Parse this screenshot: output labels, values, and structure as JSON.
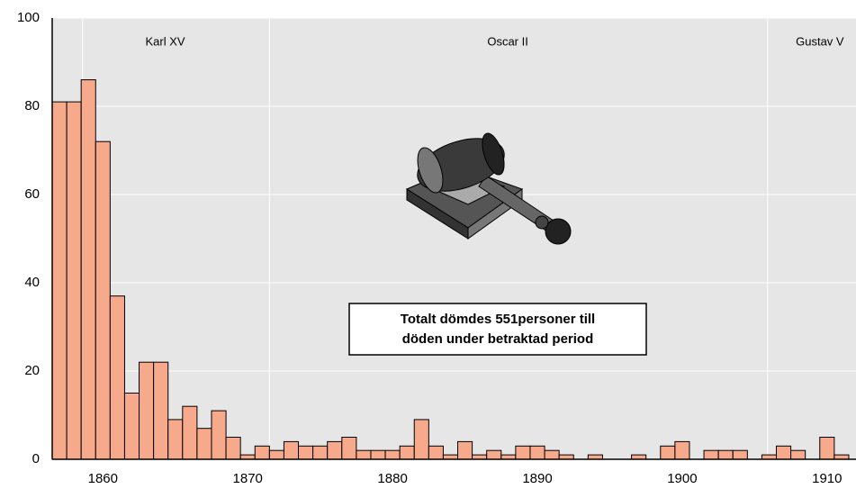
{
  "chart_data": {
    "type": "histogram",
    "bins": [
      1856.5,
      1857.5,
      1858.5,
      1859.5,
      1860.5,
      1861.5,
      1862.5,
      1863.5,
      1864.5,
      1865.5,
      1866.5,
      1867.5,
      1868.5,
      1869.5,
      1870.5,
      1871.5,
      1872.5,
      1873.5,
      1874.5,
      1875.5,
      1876.5,
      1877.5,
      1878.5,
      1879.5,
      1880.5,
      1881.5,
      1882.5,
      1883.5,
      1884.5,
      1885.5,
      1886.5,
      1887.5,
      1888.5,
      1889.5,
      1890.5,
      1891.5,
      1892.5,
      1893.5,
      1894.5,
      1895.5,
      1896.5,
      1897.5,
      1898.5,
      1899.5,
      1900.5,
      1901.5,
      1902.5,
      1903.5,
      1904.5,
      1905.5,
      1906.5,
      1907.5,
      1908.5,
      1909.5,
      1910.5,
      1911.5
    ],
    "values": [
      81,
      81,
      86,
      72,
      37,
      15,
      22,
      22,
      9,
      12,
      7,
      11,
      5,
      1,
      3,
      2,
      4,
      3,
      3,
      4,
      5,
      2,
      2,
      2,
      3,
      9,
      3,
      1,
      4,
      1,
      2,
      1,
      3,
      3,
      2,
      1,
      0,
      1,
      0,
      0,
      1,
      0,
      3,
      4,
      0,
      2,
      2,
      2,
      0,
      1,
      3,
      2,
      0,
      5,
      1
    ],
    "color": "#f7a98b",
    "xlim": [
      1856.5,
      1912
    ],
    "xticks": [
      1860,
      1870,
      1880,
      1890,
      1900,
      1910
    ],
    "ylim": [
      0,
      100
    ],
    "yticks": [
      0,
      20,
      40,
      60,
      80,
      100
    ],
    "grid": true,
    "reigns": [
      {
        "label": "Karl XV",
        "start": 1858.6
      },
      {
        "label": "Oscar II",
        "start": 1871.5
      },
      {
        "label": "Gustav V",
        "start": 1905.9
      }
    ],
    "annotation": [
      "Totalt dömdes 551personer till",
      "döden under betraktad period"
    ]
  }
}
